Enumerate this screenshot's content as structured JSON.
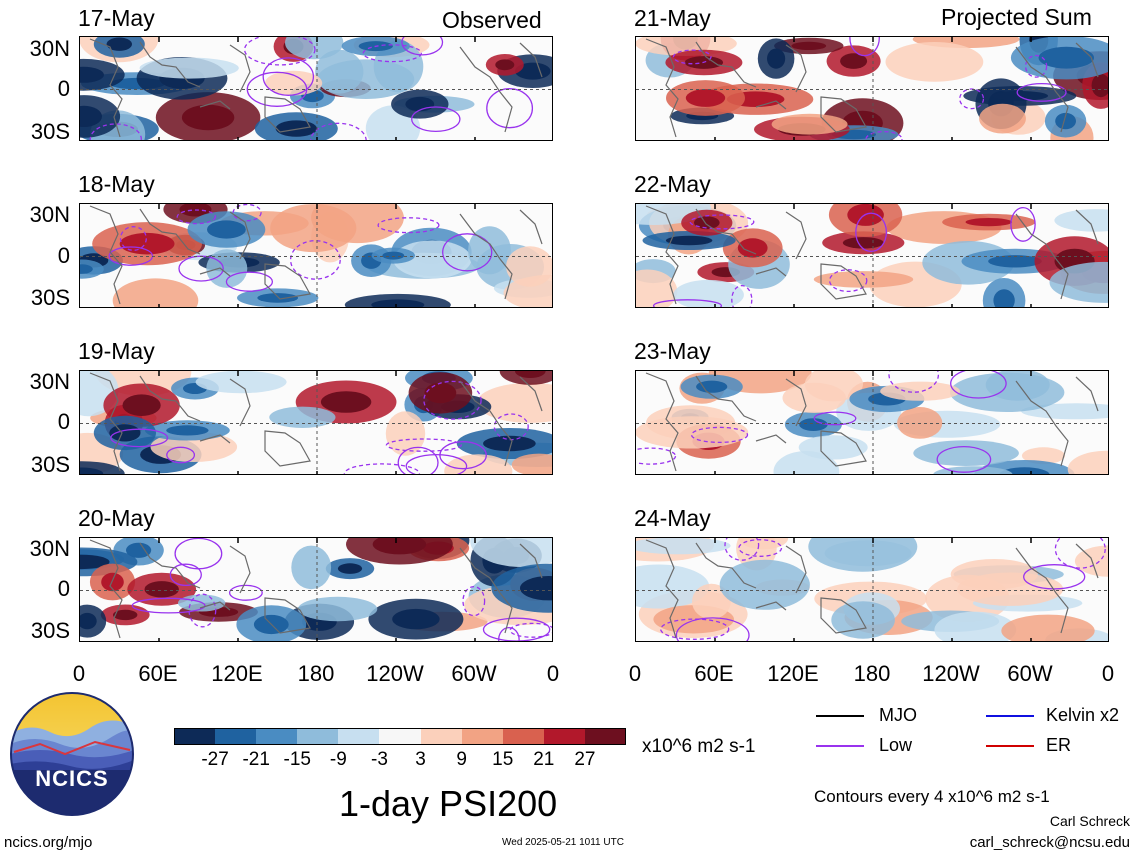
{
  "header": {
    "observed_label": "Observed",
    "projected_label": "Projected Sum"
  },
  "panels_left": [
    {
      "date": "17-May"
    },
    {
      "date": "18-May"
    },
    {
      "date": "19-May"
    },
    {
      "date": "20-May"
    }
  ],
  "panels_right": [
    {
      "date": "21-May"
    },
    {
      "date": "22-May"
    },
    {
      "date": "23-May"
    },
    {
      "date": "24-May"
    }
  ],
  "lat_labels": [
    "30N",
    "0",
    "30S"
  ],
  "lon_labels": [
    "0",
    "60E",
    "120E",
    "180",
    "120W",
    "60W",
    "0"
  ],
  "colorbar": {
    "colors": [
      "#0d2a57",
      "#1f62a0",
      "#4a8cc2",
      "#8fbcdb",
      "#c7dff0",
      "#f7f7f7",
      "#fbd0bb",
      "#f2a384",
      "#d9614f",
      "#b2182b",
      "#6d0f1f"
    ],
    "labels": [
      "-27",
      "-21",
      "-15",
      "-9",
      "-3",
      "3",
      "9",
      "15",
      "21",
      "27"
    ],
    "units": "x10^6 m2 s-1"
  },
  "legend": {
    "items": [
      {
        "label": "MJO",
        "color": "#000000"
      },
      {
        "label": "Kelvin x2",
        "color": "#1010e0"
      },
      {
        "label": "Low",
        "color": "#9933ee"
      },
      {
        "label": "ER",
        "color": "#d00000"
      }
    ],
    "contours_note": "Contours every 4 x10^6 m2 s-1"
  },
  "main_title": "1-day PSI200",
  "logo_text": "NCICS",
  "footer": {
    "url": "ncics.org/mjo",
    "timestamp": "Wed 2025-05-21 1011 UTC",
    "author": "Carl Schreck",
    "email": "carl_schreck@ncsu.edu"
  }
}
